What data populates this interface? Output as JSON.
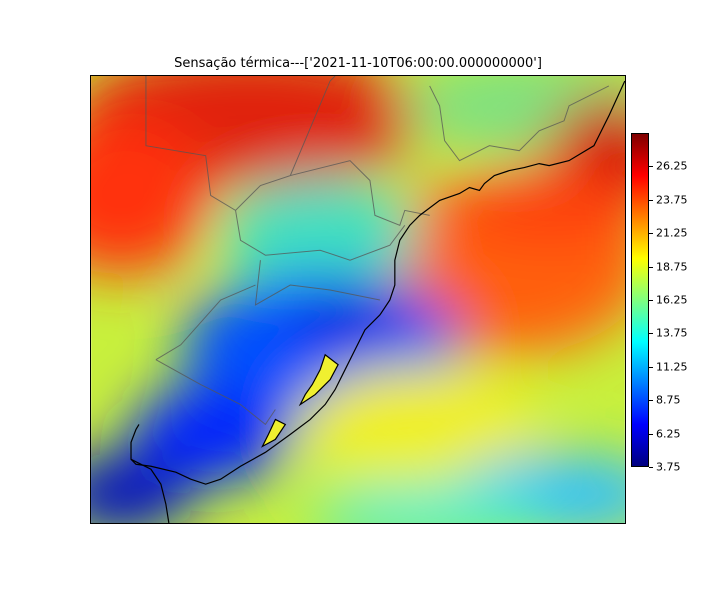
{
  "figure": {
    "title": "Sensação térmica---['2021-11-10T06:00:00.000000000']"
  },
  "colormap": {
    "name": "jet",
    "stops": [
      "#00007f",
      "#0000ff",
      "#007fff",
      "#00ffff",
      "#7fff7f",
      "#ffff00",
      "#ff7f00",
      "#ff0000",
      "#7f0000"
    ]
  },
  "colorbar": {
    "min": 3.75,
    "max": 28.75,
    "ticks": [
      "3.75",
      "6.25",
      "8.75",
      "11.25",
      "13.75",
      "16.25",
      "18.75",
      "21.25",
      "23.75",
      "26.25"
    ]
  },
  "chart_data": {
    "type": "heatmap",
    "title": "Sensação térmica---['2021-11-10T06:00:00.000000000']",
    "variable": "Sensação térmica",
    "valid_time": "2021-11-10T06:00:00.000000000",
    "colorbar_range": [
      3.75,
      28.75
    ],
    "colorbar_ticks": [
      3.75,
      6.25,
      8.75,
      11.25,
      13.75,
      16.25,
      18.75,
      21.25,
      23.75,
      26.25
    ],
    "regions": [
      {
        "region": "northwest",
        "approx_value": 25
      },
      {
        "region": "north-central",
        "approx_value": 27
      },
      {
        "region": "northeast coast",
        "approx_value": 26
      },
      {
        "region": "west",
        "approx_value": 22
      },
      {
        "region": "central plateau",
        "approx_value": 16
      },
      {
        "region": "center-west",
        "approx_value": 13
      },
      {
        "region": "central lowlands",
        "approx_value": 7
      },
      {
        "region": "southwest",
        "approx_value": 6
      },
      {
        "region": "far south",
        "approx_value": 10
      },
      {
        "region": "east ocean",
        "approx_value": 22
      },
      {
        "region": "southeast ocean",
        "approx_value": 13
      }
    ]
  }
}
